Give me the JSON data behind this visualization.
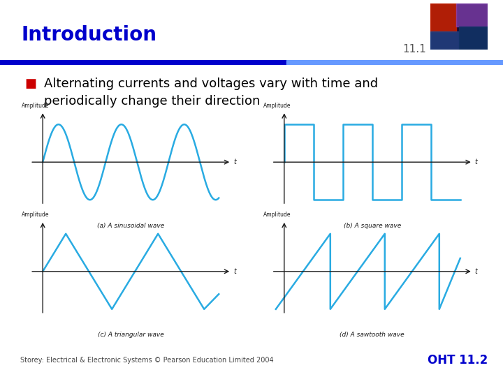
{
  "title": "Introduction",
  "section_num": "11.1",
  "bullet_marker": "■",
  "bullet_text": "Alternating currents and voltages vary with time and\nperiodically change their direction",
  "wave_color": "#29ABE2",
  "axis_color": "#1a1a1a",
  "title_color": "#0000CC",
  "bg_color": "#FFFFFF",
  "sep_color_left": "#0000CC",
  "sep_color_right": "#6699FF",
  "footer_text": "Storey: Electrical & Electronic Systems © Pearson Education Limited 2004",
  "footer_right": "OHT 11.2",
  "captions": [
    "(a) A sinusoidal wave",
    "(b) A square wave",
    "(c) A triangular wave",
    "(d) A sawtooth wave"
  ],
  "amplitude_label": "Amplitude",
  "t_label": "t"
}
